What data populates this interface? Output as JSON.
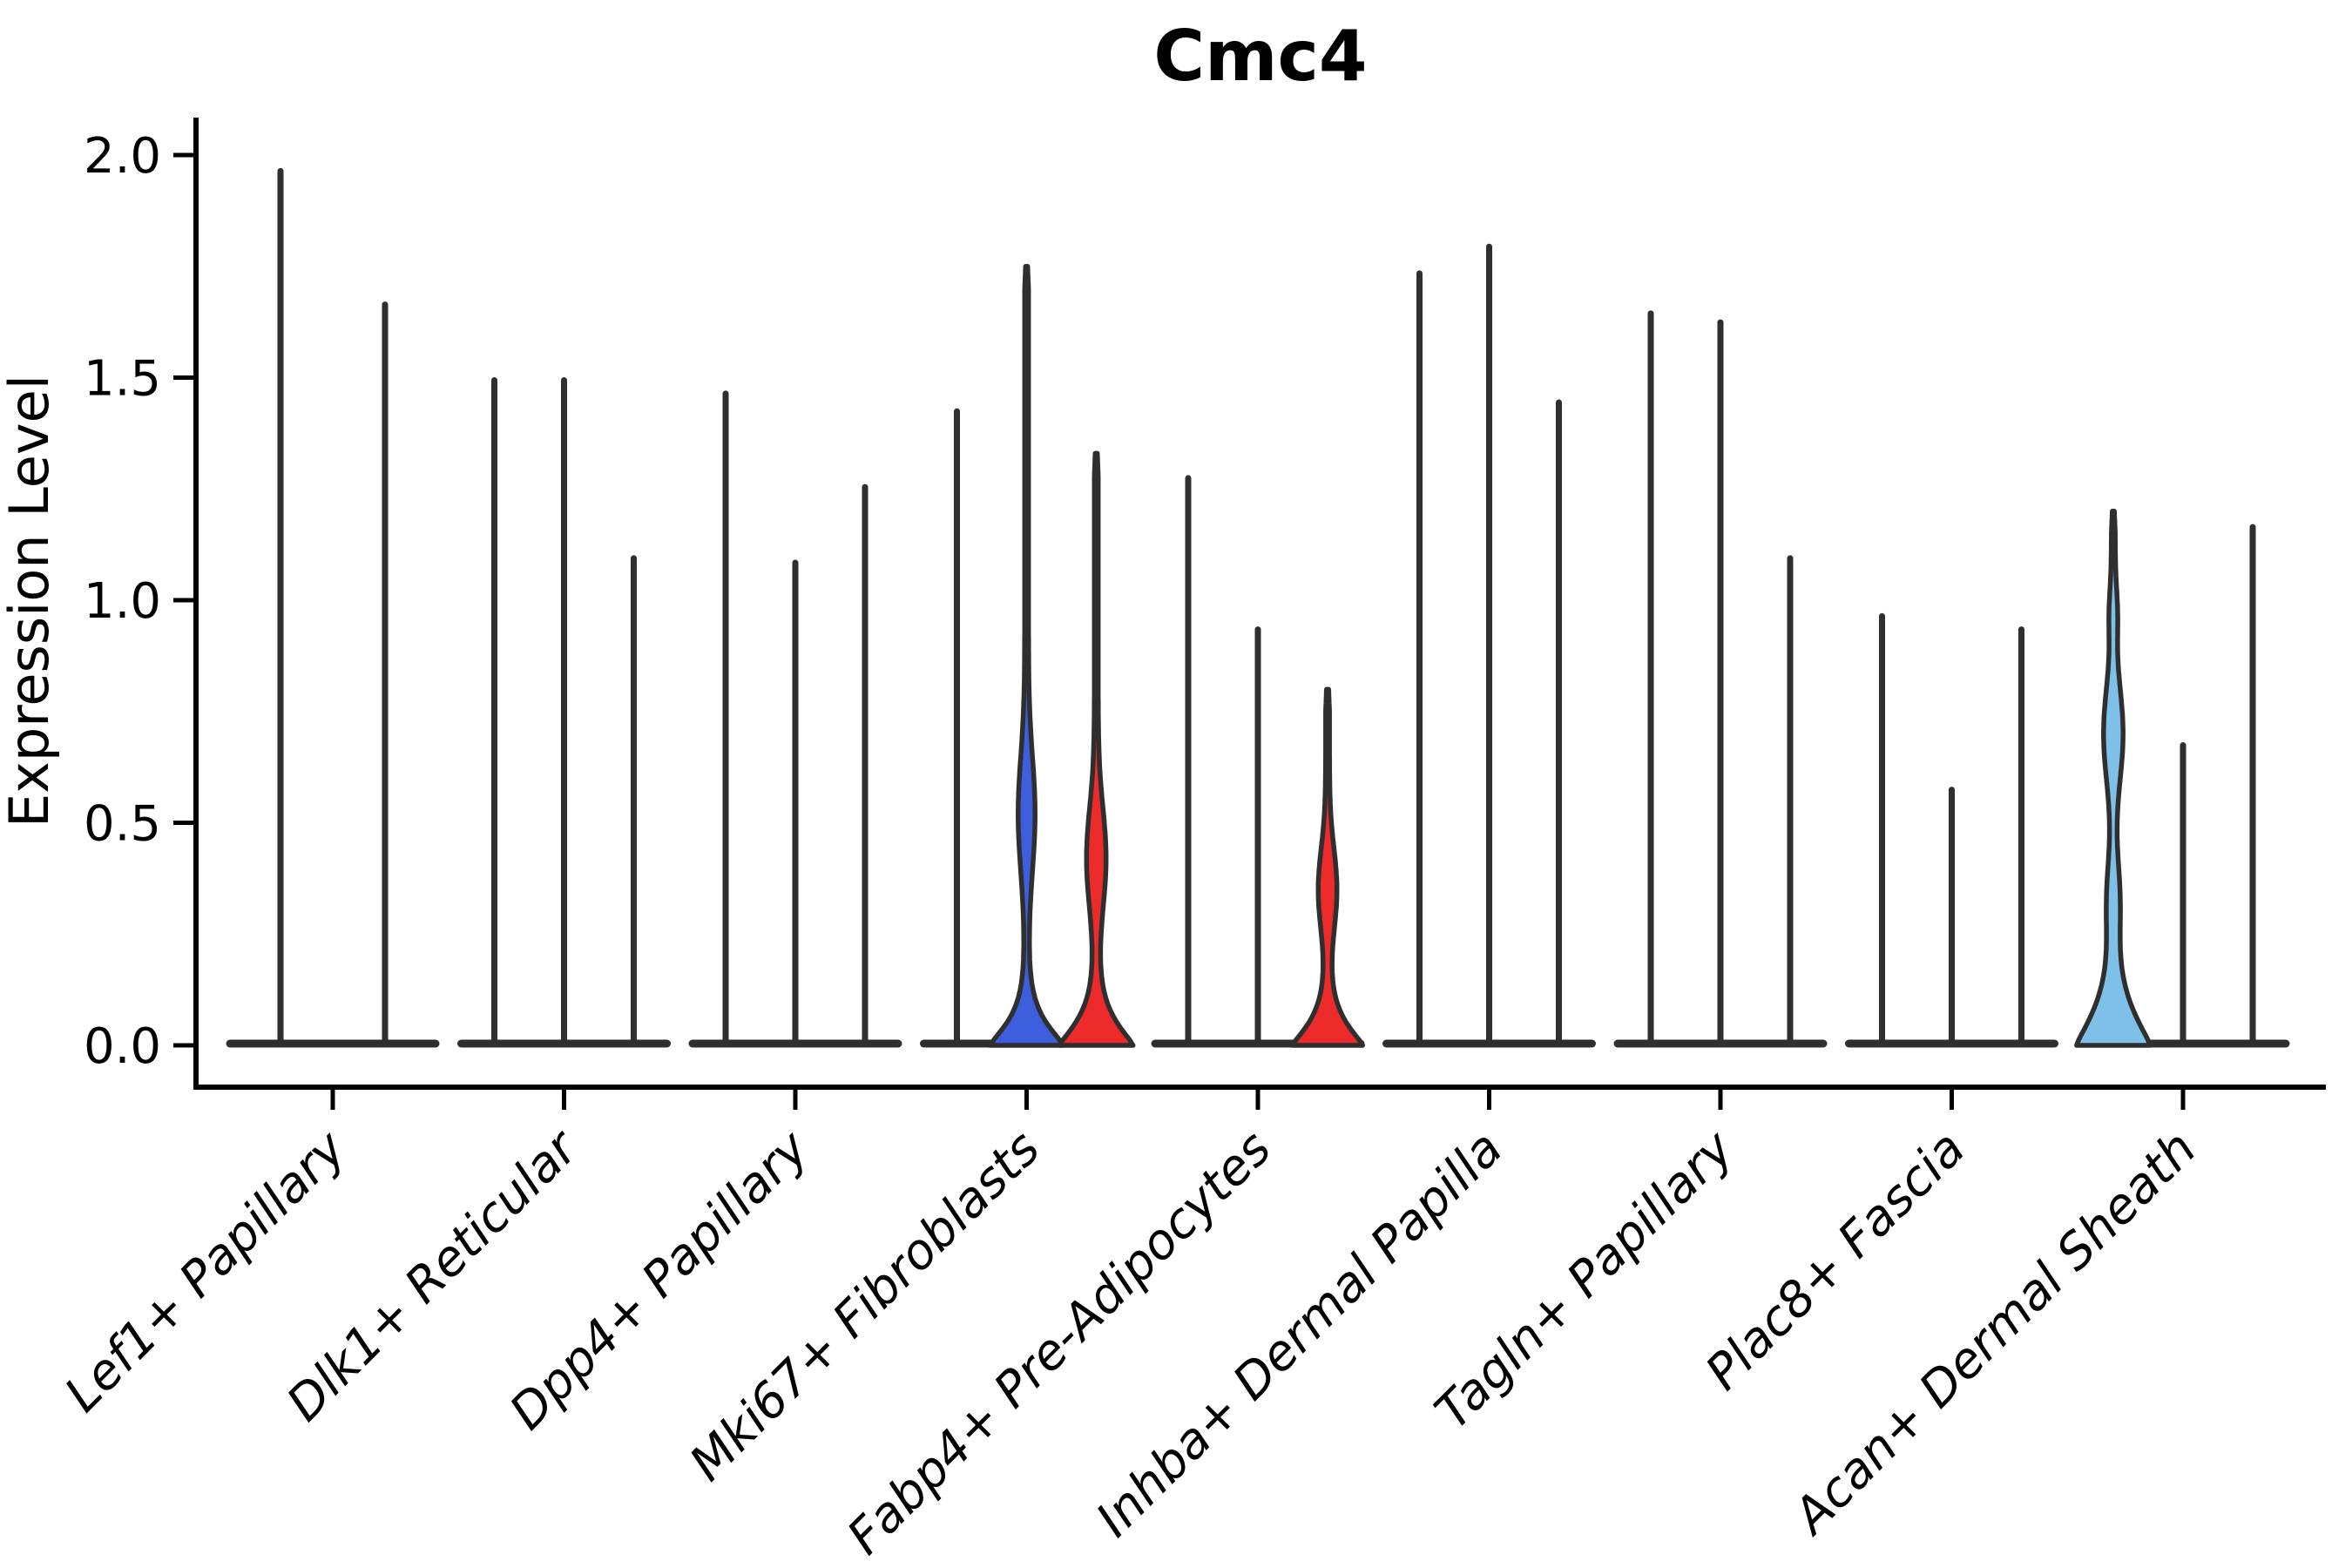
{
  "chart_data": {
    "type": "violin",
    "title": "Cmc4",
    "ylabel": "Expression Level",
    "xlabel": "",
    "ylim": [
      0,
      2.08
    ],
    "yticks": [
      0.0,
      0.5,
      1.0,
      1.5,
      2.0
    ],
    "grid": false,
    "legend": "none",
    "xticklabel_rotation": 45,
    "colors": {
      "axis": "#000000",
      "violin_stroke": "#2f2f2f",
      "split_lightblue": "#7EC0E8",
      "split_blue": "#3D5FDE",
      "split_red": "#EE2B2B"
    },
    "categories": [
      "Lef1+ Papillary",
      "Dlk1+ Reticular",
      "Dpp4+ Papillary",
      "Mki67+ Fibroblasts",
      "Fabp4+ Pre-Adipocytes",
      "Inhba+ Dermal Papilla",
      "Tagln+ Papillary",
      "Plac8+ Fascia",
      "Acan+ Dermal Sheath"
    ],
    "groups": [
      {
        "category": "Lef1+ Papillary",
        "violins": [
          {
            "offset": -60,
            "max": 1.97,
            "style": "thin",
            "fill": "#2f2f2f"
          },
          {
            "offset": 60,
            "max": 1.67,
            "style": "thin",
            "fill": "#2f2f2f"
          }
        ]
      },
      {
        "category": "Dlk1+ Reticular",
        "violins": [
          {
            "offset": -80,
            "max": 1.5,
            "style": "thin",
            "fill": "#2f2f2f"
          },
          {
            "offset": 0,
            "max": 1.5,
            "style": "thin",
            "fill": "#2f2f2f"
          },
          {
            "offset": 80,
            "max": 1.1,
            "style": "thin",
            "fill": "#2f2f2f"
          }
        ]
      },
      {
        "category": "Dpp4+ Papillary",
        "violins": [
          {
            "offset": -80,
            "max": 1.47,
            "style": "thin",
            "fill": "#2f2f2f"
          },
          {
            "offset": 0,
            "max": 1.09,
            "style": "thin",
            "fill": "#2f2f2f"
          },
          {
            "offset": 80,
            "max": 1.26,
            "style": "thin",
            "fill": "#2f2f2f"
          }
        ]
      },
      {
        "category": "Mki67+ Fibroblasts",
        "violins": [
          {
            "offset": -80,
            "max": 1.43,
            "style": "thin",
            "fill": "#2f2f2f"
          },
          {
            "offset": 0,
            "max": 1.75,
            "style": "violin",
            "fill": "#3D5FDE",
            "profile": {
              "base_hw": 40,
              "decay": 0.07,
              "bulges": [
                {
                  "c": 0.52,
                  "hw": 7.5,
                  "s": 0.18
                }
              ]
            }
          },
          {
            "offset": 80,
            "max": 1.33,
            "style": "violin",
            "fill": "#EE2B2B",
            "profile": {
              "base_hw": 40,
              "decay": 0.075,
              "bulges": [
                {
                  "c": 0.42,
                  "hw": 9,
                  "s": 0.16
                }
              ]
            }
          }
        ]
      },
      {
        "category": "Fabp4+ Pre-Adipocytes",
        "violins": [
          {
            "offset": -80,
            "max": 1.28,
            "style": "thin",
            "fill": "#2f2f2f"
          },
          {
            "offset": 0,
            "max": 0.94,
            "style": "thin",
            "fill": "#2f2f2f"
          },
          {
            "offset": 80,
            "max": 0.8,
            "style": "violin",
            "fill": "#EE2B2B",
            "profile": {
              "base_hw": 38,
              "decay": 0.07,
              "bulges": [
                {
                  "c": 0.35,
                  "hw": 8.5,
                  "s": 0.13
                }
              ]
            }
          }
        ]
      },
      {
        "category": "Inhba+ Dermal Papilla",
        "violins": [
          {
            "offset": -80,
            "max": 1.74,
            "style": "thin",
            "fill": "#2f2f2f"
          },
          {
            "offset": 0,
            "max": 1.8,
            "style": "thin",
            "fill": "#2f2f2f"
          },
          {
            "offset": 80,
            "max": 1.45,
            "style": "thin",
            "fill": "#2f2f2f"
          }
        ]
      },
      {
        "category": "Tagln+ Papillary",
        "violins": [
          {
            "offset": -80,
            "max": 1.65,
            "style": "thin",
            "fill": "#2f2f2f"
          },
          {
            "offset": 0,
            "max": 1.63,
            "style": "thin",
            "fill": "#2f2f2f"
          },
          {
            "offset": 80,
            "max": 1.1,
            "style": "thin",
            "fill": "#2f2f2f"
          }
        ]
      },
      {
        "category": "Plac8+ Fascia",
        "violins": [
          {
            "offset": -80,
            "max": 0.97,
            "style": "thin",
            "fill": "#2f2f2f"
          },
          {
            "offset": 0,
            "max": 0.58,
            "style": "thin",
            "fill": "#2f2f2f"
          },
          {
            "offset": 80,
            "max": 0.94,
            "style": "thin",
            "fill": "#2f2f2f"
          }
        ]
      },
      {
        "category": "Acan+ Dermal Sheath",
        "violins": [
          {
            "offset": -80,
            "max": 1.2,
            "style": "violin",
            "fill": "#7EC0E8",
            "profile": {
              "base_hw": 40,
              "decay": 0.11,
              "bulges": [
                {
                  "c": 0.7,
                  "hw": 9,
                  "s": 0.15
                },
                {
                  "c": 0.33,
                  "hw": 5,
                  "s": 0.12
                },
                {
                  "c": 0.97,
                  "hw": 2.5,
                  "s": 0.08
                }
              ]
            }
          },
          {
            "offset": 0,
            "max": 0.68,
            "style": "thin",
            "fill": "#2f2f2f"
          },
          {
            "offset": 80,
            "max": 1.17,
            "style": "thin",
            "fill": "#2f2f2f"
          }
        ]
      }
    ]
  }
}
